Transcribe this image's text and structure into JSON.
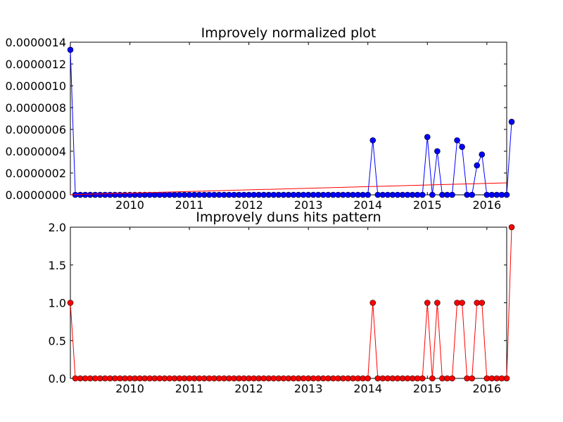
{
  "chart_data": [
    {
      "type": "line",
      "title": "Improvely normalized plot",
      "xlabel": "",
      "ylabel": "",
      "x_start": "2009-01",
      "x_step": "1 month",
      "xlim": [
        "2009-01",
        "2016-05"
      ],
      "ylim": [
        0,
        1.4e-06
      ],
      "xticks": [
        "2010",
        "2011",
        "2012",
        "2013",
        "2014",
        "2015",
        "2016"
      ],
      "yticks": [
        "0.0000000",
        "0.0000002",
        "0.0000004",
        "0.0000006",
        "0.0000008",
        "0.0000010",
        "0.0000012",
        "0.0000014"
      ],
      "grid": false,
      "series": [
        {
          "color": "#0000ff",
          "marker": "circle",
          "values": [
            1.33e-06,
            0,
            0,
            0,
            0,
            0,
            0,
            0,
            0,
            0,
            0,
            0,
            0,
            0,
            0,
            0,
            0,
            0,
            0,
            0,
            0,
            0,
            0,
            0,
            0,
            0,
            0,
            0,
            0,
            0,
            0,
            0,
            0,
            0,
            0,
            0,
            0,
            0,
            0,
            0,
            0,
            0,
            0,
            0,
            0,
            0,
            0,
            0,
            0,
            0,
            0,
            0,
            0,
            0,
            0,
            0,
            0,
            0,
            0,
            0,
            0,
            5e-07,
            0,
            0,
            0,
            0,
            0,
            0,
            0,
            0,
            0,
            0,
            5.3e-07,
            0,
            4e-07,
            0,
            0,
            0,
            5e-07,
            4.4e-07,
            0,
            0,
            2.7e-07,
            3.7e-07,
            0,
            0,
            0,
            0,
            0,
            6.7e-07
          ]
        },
        {
          "color": "#ff0000",
          "marker": "none",
          "trend": [
            1e-09,
            1.1e-07
          ]
        }
      ]
    },
    {
      "type": "line",
      "title": "Improvely duns hits pattern",
      "xlabel": "",
      "ylabel": "",
      "x_start": "2009-01",
      "x_step": "1 month",
      "xlim": [
        "2009-01",
        "2016-05"
      ],
      "ylim": [
        0,
        2.0
      ],
      "xticks": [
        "2010",
        "2011",
        "2012",
        "2013",
        "2014",
        "2015",
        "2016"
      ],
      "yticks": [
        "0.0",
        "0.5",
        "1.0",
        "1.5",
        "2.0"
      ],
      "grid": false,
      "series": [
        {
          "color": "#ff0000",
          "marker": "circle",
          "values": [
            1,
            0,
            0,
            0,
            0,
            0,
            0,
            0,
            0,
            0,
            0,
            0,
            0,
            0,
            0,
            0,
            0,
            0,
            0,
            0,
            0,
            0,
            0,
            0,
            0,
            0,
            0,
            0,
            0,
            0,
            0,
            0,
            0,
            0,
            0,
            0,
            0,
            0,
            0,
            0,
            0,
            0,
            0,
            0,
            0,
            0,
            0,
            0,
            0,
            0,
            0,
            0,
            0,
            0,
            0,
            0,
            0,
            0,
            0,
            0,
            0,
            1,
            0,
            0,
            0,
            0,
            0,
            0,
            0,
            0,
            0,
            0,
            1,
            0,
            1,
            0,
            0,
            0,
            1,
            1,
            0,
            0,
            1,
            1,
            0,
            0,
            0,
            0,
            0,
            2
          ]
        }
      ]
    }
  ]
}
